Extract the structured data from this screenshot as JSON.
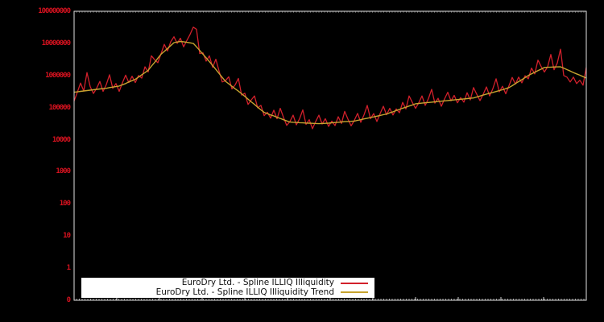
{
  "colors": {
    "background": "#000000",
    "plot_border": "#e2e2e2",
    "tick_label": "#d6121f",
    "series_red": "#d2202b",
    "series_trend": "#c7a42f",
    "legend_background": "#ffffff",
    "legend_text": "#111111"
  },
  "legend": {
    "position": "bottom-left-inside"
  },
  "chart_data": {
    "type": "line",
    "yscale": "log",
    "ylim": [
      0,
      100000000
    ],
    "ytick_labels": [
      "100000000",
      "10000000",
      "1000000",
      "100000",
      "10000",
      "1000",
      "100",
      "10",
      "1",
      "0"
    ],
    "xtick_labels": [],
    "grid": false,
    "series": [
      {
        "name": "EuroDry Ltd. - Spline ILLIQ Illiquidity",
        "color": "#d2202b",
        "values": [
          160000.0,
          300000.0,
          580000.0,
          330000.0,
          1230000.0,
          450000.0,
          275000.0,
          400000.0,
          650000.0,
          320000.0,
          520000.0,
          1050000.0,
          400000.0,
          560000.0,
          320000.0,
          590000.0,
          1020000.0,
          600000.0,
          950000.0,
          600000.0,
          1000000.0,
          830000.0,
          1860000.0,
          1290000.0,
          4100000.0,
          3100000.0,
          2500000.0,
          4800000.0,
          9300000.0,
          5800000.0,
          11200000.0,
          16000000.0,
          10000000.0,
          14500000.0,
          7800000.0,
          12300000.0,
          19000000.0,
          32000000.0,
          27500000.0,
          4800000.0,
          5100000.0,
          2800000.0,
          4100000.0,
          1800000.0,
          3200000.0,
          1380000.0,
          630000.0,
          690000.0,
          910000.0,
          380000.0,
          510000.0,
          810000.0,
          245000.0,
          280000.0,
          126000.0,
          174000.0,
          230000.0,
          98000.0,
          117000.0,
          56000.0,
          72000.0,
          47000.0,
          83000.0,
          45000.0,
          95000.0,
          50000.0,
          28000.0,
          37000.0,
          58000.0,
          29000.0,
          45000.0,
          85000.0,
          30000.0,
          42000.0,
          22000.0,
          37000.0,
          58000.0,
          31000.0,
          45000.0,
          26000.0,
          38000.0,
          27500.0,
          52000.0,
          32000.0,
          76000.0,
          44000.0,
          27000.0,
          40000.0,
          66000.0,
          35000.0,
          59000.0,
          117000.0,
          45000.0,
          65000.0,
          37000.0,
          65000.0,
          110000.0,
          60000.0,
          95000.0,
          59000.0,
          91000.0,
          69000.0,
          145000.0,
          91000.0,
          230000.0,
          145000.0,
          95000.0,
          141000.0,
          230000.0,
          117000.0,
          190000.0,
          370000.0,
          138000.0,
          195000.0,
          110000.0,
          186000.0,
          300000.0,
          162000.0,
          240000.0,
          141000.0,
          204000.0,
          148000.0,
          290000.0,
          174000.0,
          420000.0,
          260000.0,
          166000.0,
          260000.0,
          440000.0,
          230000.0,
          390000.0,
          790000.0,
          310000.0,
          460000.0,
          270000.0,
          480000.0,
          870000.0,
          540000.0,
          890000.0,
          590000.0,
          980000.0,
          790000.0,
          1700000.0,
          1120000.0,
          3000000.0,
          1900000.0,
          1290000.0,
          1860000.0,
          4500000.0,
          1510000.0,
          2450000.0,
          6600000.0,
          1000000.0,
          890000.0,
          630000.0,
          890000.0,
          560000.0,
          710000.0,
          500000.0,
          1780000.0
        ]
      },
      {
        "name": "EuroDry Ltd. - Spline ILLIQ Illiquidity Trend",
        "color": "#c7a42f",
        "values": [
          300000.0,
          310000.0,
          320000.0,
          330000.0,
          340000.0,
          350000.0,
          360000.0,
          370000.0,
          380000.0,
          390000.0,
          400000.0,
          420000.0,
          435000.0,
          450000.0,
          470000.0,
          515000.0,
          560000.0,
          630000.0,
          690000.0,
          760000.0,
          890000.0,
          1050000.0,
          1230000.0,
          1450000.0,
          1950000.0,
          2550000.0,
          3450000.0,
          4600000.0,
          5600000.0,
          6900000.0,
          8500000.0,
          10500000.0,
          11000000.0,
          11500000.0,
          11200000.0,
          10800000.0,
          10400000.0,
          10000000.0,
          7800000.0,
          6000000.0,
          4600000.0,
          3550000.0,
          2700000.0,
          2050000.0,
          1550000.0,
          1160000.0,
          870000.0,
          660000.0,
          550000.0,
          460000.0,
          385000.0,
          325000.0,
          270000.0,
          224000.0,
          183000.0,
          151000.0,
          126000.0,
          103000.0,
          85000.0,
          71000.0,
          65000.0,
          59000.0,
          55000.0,
          50000.0,
          46000.0,
          42000.0,
          38500.0,
          35500.0,
          35000.0,
          34500.0,
          34000.0,
          33600.0,
          33000.0,
          32800.0,
          32400.0,
          32000.0,
          31600.0,
          32000.0,
          32300.0,
          32800.0,
          33600.0,
          34300.0,
          35000.0,
          35800.0,
          36600.0,
          37000.0,
          37400.0,
          38000.0,
          40000.0,
          42000.0,
          44500.0,
          46500.0,
          49000.0,
          51500.0,
          54000.0,
          57000.0,
          60000.0,
          63000.0,
          69000.0,
          74000.0,
          81000.0,
          88000.0,
          96000.0,
          103000.0,
          112000.0,
          121000.0,
          132000.0,
          135000.0,
          138000.0,
          141000.0,
          144000.0,
          148000.0,
          151000.0,
          155000.0,
          158000.0,
          162000.0,
          166000.0,
          170000.0,
          174000.0,
          178000.0,
          182000.0,
          186000.0,
          190000.0,
          195000.0,
          200000.0,
          214000.0,
          229000.0,
          245000.0,
          263000.0,
          280000.0,
          297000.0,
          316000.0,
          340000.0,
          360000.0,
          390000.0,
          420000.0,
          480000.0,
          560000.0,
          645000.0,
          740000.0,
          860000.0,
          1000000.0,
          1120000.0,
          1260000.0,
          1410000.0,
          1580000.0,
          1780000.0,
          1800000.0,
          1820000.0,
          1840000.0,
          1850000.0,
          1860000.0,
          1700000.0,
          1520000.0,
          1380000.0,
          1240000.0,
          1120000.0,
          1020000.0,
          920000.0,
          830000.0
        ]
      }
    ]
  }
}
